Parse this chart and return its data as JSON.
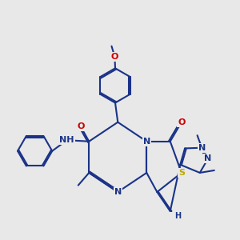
{
  "bg_color": "#e8e8e8",
  "bond_color": "#1a3388",
  "O_color": "#cc0000",
  "N_color": "#1a3388",
  "S_color": "#bbaa00",
  "bond_lw": 1.5,
  "font_size": 8.0,
  "dbl_off": 0.055,
  "xlim": [
    0,
    10
  ],
  "ylim": [
    0,
    10
  ]
}
